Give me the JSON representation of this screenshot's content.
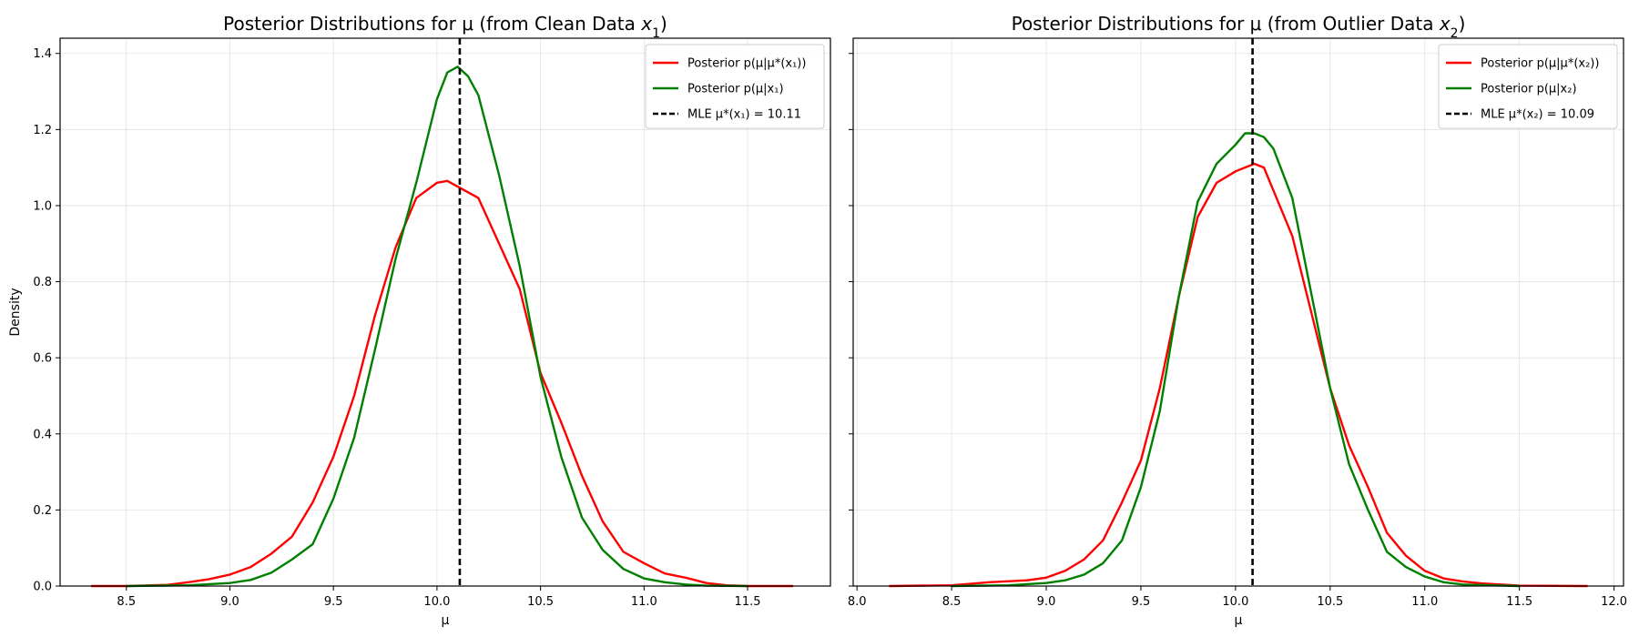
{
  "chart_data": [
    {
      "type": "line",
      "title_pre": "Posterior Distributions for μ (from Clean Data ",
      "title_var": "x",
      "title_sub": "1",
      "title_post": ")",
      "xlabel": "μ",
      "ylabel": "Density",
      "xlim": [
        8.18,
        11.9
      ],
      "ylim": [
        0,
        1.44
      ],
      "xticks": [
        8.5,
        9.0,
        9.5,
        10.0,
        10.5,
        11.0,
        11.5
      ],
      "yticks": [
        0.0,
        0.2,
        0.4,
        0.6,
        0.8,
        1.0,
        1.2,
        1.4
      ],
      "grid": true,
      "legend_position": "top-right",
      "vline": {
        "x": 10.11,
        "color": "#000000",
        "style": "dashed"
      },
      "legend": [
        {
          "label": "Posterior p(μ|μ*(x₁))",
          "color": "#ff0000",
          "style": "solid"
        },
        {
          "label": "Posterior p(μ|x₁)",
          "color": "#008000",
          "style": "solid"
        },
        {
          "label": "MLE μ*(x₁) = 10.11",
          "color": "#000000",
          "style": "dashed"
        }
      ],
      "series": [
        {
          "color": "#ff0000",
          "x": [
            8.33,
            8.5,
            8.7,
            8.8,
            8.9,
            9.0,
            9.1,
            9.2,
            9.3,
            9.4,
            9.5,
            9.6,
            9.7,
            9.8,
            9.9,
            10.0,
            10.05,
            10.1,
            10.2,
            10.3,
            10.4,
            10.5,
            10.6,
            10.7,
            10.8,
            10.9,
            11.0,
            11.1,
            11.2,
            11.3,
            11.4,
            11.5,
            11.72
          ],
          "y": [
            0.0,
            0.0,
            0.003,
            0.01,
            0.018,
            0.03,
            0.05,
            0.085,
            0.13,
            0.22,
            0.34,
            0.5,
            0.71,
            0.89,
            1.02,
            1.06,
            1.065,
            1.05,
            1.02,
            0.9,
            0.78,
            0.56,
            0.43,
            0.29,
            0.17,
            0.09,
            0.06,
            0.033,
            0.022,
            0.008,
            0.002,
            0.0,
            0.0
          ]
        },
        {
          "color": "#008000",
          "x": [
            8.5,
            8.8,
            9.0,
            9.1,
            9.2,
            9.3,
            9.4,
            9.5,
            9.6,
            9.7,
            9.8,
            9.9,
            10.0,
            10.05,
            10.1,
            10.15,
            10.2,
            10.3,
            10.4,
            10.5,
            10.6,
            10.7,
            10.8,
            10.9,
            11.0,
            11.1,
            11.2,
            11.3,
            11.5
          ],
          "y": [
            0.0,
            0.002,
            0.008,
            0.016,
            0.035,
            0.07,
            0.11,
            0.23,
            0.39,
            0.62,
            0.86,
            1.06,
            1.28,
            1.35,
            1.365,
            1.34,
            1.29,
            1.08,
            0.84,
            0.55,
            0.34,
            0.18,
            0.095,
            0.045,
            0.02,
            0.01,
            0.004,
            0.001,
            0.0
          ]
        }
      ]
    },
    {
      "type": "line",
      "title_pre": "Posterior Distributions for μ (from Outlier Data ",
      "title_var": "x",
      "title_sub": "2",
      "title_post": ")",
      "xlabel": "μ",
      "ylabel": "",
      "xlim": [
        7.98,
        12.05
      ],
      "ylim": [
        0,
        1.44
      ],
      "xticks": [
        8.0,
        8.5,
        9.0,
        9.5,
        10.0,
        10.5,
        11.0,
        11.5,
        12.0
      ],
      "yticks": [
        0.0,
        0.2,
        0.4,
        0.6,
        0.8,
        1.0,
        1.2,
        1.4
      ],
      "grid": true,
      "legend_position": "top-right",
      "vline": {
        "x": 10.09,
        "color": "#000000",
        "style": "dashed"
      },
      "legend": [
        {
          "label": "Posterior p(μ|μ*(x₂))",
          "color": "#ff0000",
          "style": "solid"
        },
        {
          "label": "Posterior p(μ|x₂)",
          "color": "#008000",
          "style": "solid"
        },
        {
          "label": "MLE μ*(x₂) = 10.09",
          "color": "#000000",
          "style": "dashed"
        }
      ],
      "series": [
        {
          "color": "#ff0000",
          "x": [
            8.17,
            8.5,
            8.7,
            8.9,
            9.0,
            9.1,
            9.2,
            9.3,
            9.4,
            9.5,
            9.6,
            9.7,
            9.8,
            9.9,
            10.0,
            10.05,
            10.1,
            10.15,
            10.2,
            10.3,
            10.4,
            10.5,
            10.6,
            10.7,
            10.8,
            10.9,
            11.0,
            11.1,
            11.2,
            11.3,
            11.5,
            11.86
          ],
          "y": [
            0.0,
            0.002,
            0.01,
            0.015,
            0.022,
            0.04,
            0.07,
            0.12,
            0.22,
            0.33,
            0.52,
            0.76,
            0.97,
            1.06,
            1.09,
            1.1,
            1.11,
            1.1,
            1.04,
            0.92,
            0.72,
            0.52,
            0.37,
            0.26,
            0.14,
            0.08,
            0.04,
            0.02,
            0.012,
            0.007,
            0.001,
            0.0
          ]
        },
        {
          "color": "#008000",
          "x": [
            8.5,
            8.8,
            9.0,
            9.1,
            9.2,
            9.3,
            9.4,
            9.5,
            9.6,
            9.7,
            9.8,
            9.9,
            10.0,
            10.05,
            10.1,
            10.15,
            10.2,
            10.3,
            10.4,
            10.5,
            10.6,
            10.7,
            10.8,
            10.9,
            11.0,
            11.1,
            11.2,
            11.5
          ],
          "y": [
            0.0,
            0.002,
            0.008,
            0.015,
            0.03,
            0.06,
            0.12,
            0.26,
            0.46,
            0.76,
            1.01,
            1.11,
            1.16,
            1.19,
            1.19,
            1.18,
            1.15,
            1.02,
            0.77,
            0.52,
            0.32,
            0.2,
            0.09,
            0.05,
            0.025,
            0.01,
            0.004,
            0.0
          ]
        }
      ]
    }
  ]
}
